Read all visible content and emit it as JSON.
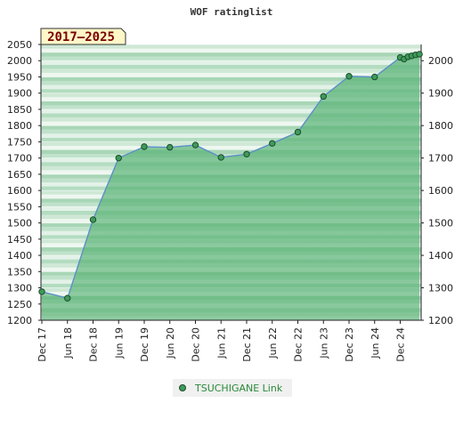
{
  "chart_data": {
    "type": "area",
    "title": "WOF ratinglist",
    "badge": "2017–2025",
    "xlabel": "",
    "ylabel": "",
    "x_ticks": [
      "Dec 17",
      "Jun 18",
      "Dec 18",
      "Jun 19",
      "Dec 19",
      "Jun 20",
      "Dec 20",
      "Jun 21",
      "Dec 21",
      "Jun 22",
      "Dec 22",
      "Jun 23",
      "Dec 23",
      "Jun 24",
      "Dec 24"
    ],
    "y_left": {
      "ticks": [
        1200,
        1250,
        1300,
        1350,
        1400,
        1450,
        1500,
        1550,
        1600,
        1650,
        1700,
        1750,
        1800,
        1850,
        1900,
        1950,
        2000,
        2050
      ],
      "ylim": [
        1200,
        2050
      ]
    },
    "y_right": {
      "ticks": [
        1200,
        1300,
        1400,
        1500,
        1600,
        1700,
        1800,
        1900,
        2000
      ],
      "ylim": [
        1200,
        2050
      ]
    },
    "grid": true,
    "legend_position": "bottom-center",
    "series": [
      {
        "name": "TSUCHIGANE Link",
        "color": "#2e8b57",
        "points": [
          {
            "x": 0.0,
            "y": 1288
          },
          {
            "x": 1.0,
            "y": 1268
          },
          {
            "x": 2.0,
            "y": 1510
          },
          {
            "x": 3.0,
            "y": 1700
          },
          {
            "x": 4.0,
            "y": 1735
          },
          {
            "x": 5.0,
            "y": 1733
          },
          {
            "x": 6.0,
            "y": 1740
          },
          {
            "x": 7.0,
            "y": 1702
          },
          {
            "x": 8.0,
            "y": 1712
          },
          {
            "x": 9.0,
            "y": 1745
          },
          {
            "x": 10.0,
            "y": 1780
          },
          {
            "x": 11.0,
            "y": 1890
          },
          {
            "x": 12.0,
            "y": 1952
          },
          {
            "x": 13.0,
            "y": 1950
          },
          {
            "x": 14.0,
            "y": 2010
          },
          {
            "x": 14.15,
            "y": 2005
          },
          {
            "x": 14.3,
            "y": 2012
          },
          {
            "x": 14.45,
            "y": 2015
          },
          {
            "x": 14.6,
            "y": 2018
          },
          {
            "x": 14.75,
            "y": 2020
          }
        ]
      }
    ]
  }
}
